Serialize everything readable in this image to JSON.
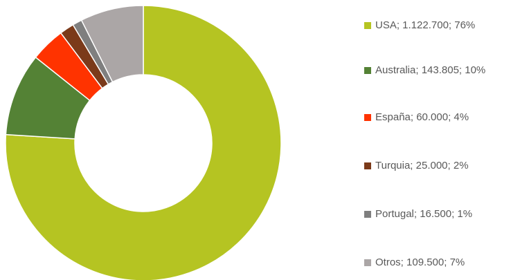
{
  "chart_data": {
    "type": "donut",
    "categories": [
      "USA; 1.122.700; 76%",
      "Australia; 143.805; 10%",
      "España; 60.000; 4%",
      "Turquia; 25.000; 2%",
      "Portugal; 16.500; 1%",
      "Otros; 109.500; 7%"
    ],
    "values": [
      1122700,
      143805,
      60000,
      25000,
      16500,
      109500
    ],
    "colors": [
      "#b5c422",
      "#548235",
      "#ff3300",
      "#7b3a1a",
      "#7f7f7f",
      "#aba6a6"
    ],
    "legend": "right"
  }
}
